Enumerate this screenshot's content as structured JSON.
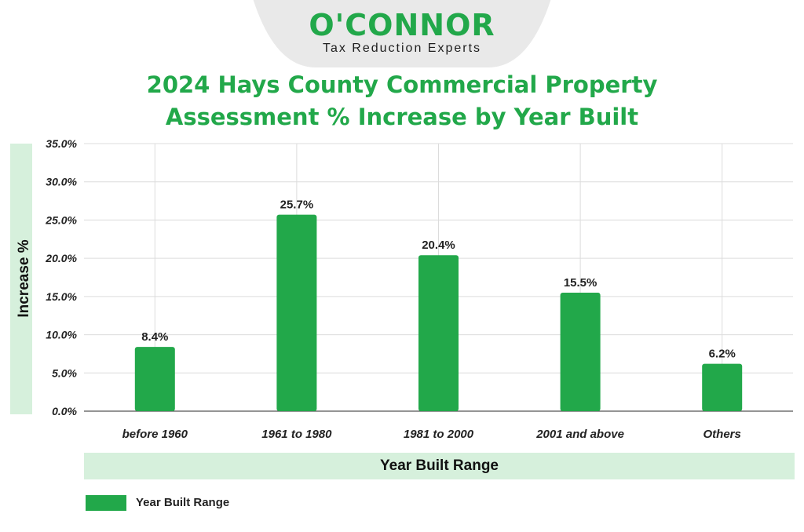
{
  "header": {
    "brand": "O'CONNOR",
    "tagline": "Tax Reduction Experts",
    "tab_color": "#e9e9e9"
  },
  "chart_data": {
    "type": "bar",
    "title": [
      "2024 Hays County Commercial Property",
      "Assessment % Increase by Year Built"
    ],
    "xlabel": "Year Built Range",
    "ylabel": "Increase %",
    "categories": [
      "before 1960",
      "1961 to 1980",
      "1981 to 2000",
      "2001 and above",
      "Others"
    ],
    "series": [
      {
        "name": "Year Built Range",
        "values": [
          8.4,
          25.7,
          20.4,
          15.5,
          6.2
        ]
      }
    ],
    "data_labels": [
      "8.4%",
      "25.7%",
      "20.4%",
      "15.5%",
      "6.2%"
    ],
    "ylim": [
      0,
      35
    ],
    "yticks": [
      "0.0%",
      "5.0%",
      "10.0%",
      "15.0%",
      "20.0%",
      "25.0%",
      "30.0%",
      "35.0%"
    ],
    "grid": true,
    "legend_position": "bottom-left",
    "colors": {
      "bar": "#22a84a",
      "title": "#22a84a",
      "label_band": "#d6f0dc",
      "grid": "#dcdcdc"
    }
  }
}
